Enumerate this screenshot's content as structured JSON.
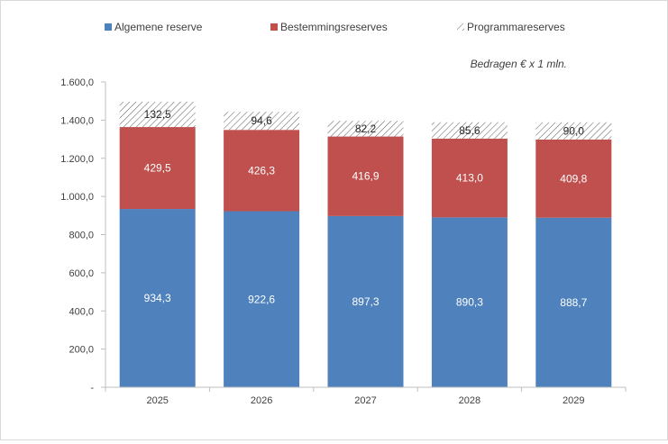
{
  "chart_data": {
    "type": "bar",
    "stacked": true,
    "categories": [
      "2025",
      "2026",
      "2027",
      "2028",
      "2029"
    ],
    "series": [
      {
        "name": "Algemene reserve",
        "values": [
          934.3,
          922.6,
          897.3,
          890.3,
          888.7
        ],
        "color": "#4f81bd",
        "labels": [
          "934,3",
          "922,6",
          "897,3",
          "890,3",
          "888,7"
        ]
      },
      {
        "name": "Bestemmingsreserves",
        "values": [
          429.5,
          426.3,
          416.9,
          413.0,
          409.8
        ],
        "color": "#c0504d",
        "labels": [
          "429,5",
          "426,3",
          "416,9",
          "413,0",
          "409,8"
        ]
      },
      {
        "name": "Programmareserves",
        "values": [
          132.5,
          94.6,
          82.2,
          85.6,
          90.0
        ],
        "color": "#ffffff",
        "pattern": "diagonal-hatch",
        "labels": [
          "132,5",
          "94,6",
          "82,2",
          "85,6",
          "90,0"
        ]
      }
    ],
    "ylim": [
      0,
      1600
    ],
    "yticks": [
      0,
      200,
      400,
      600,
      800,
      1000,
      1200,
      1400,
      1600
    ],
    "ytick_labels": [
      "-",
      "200,0",
      "400,0",
      "600,0",
      "800,0",
      "1.000,0",
      "1.200,0",
      "1.400,0",
      "1.600,0"
    ],
    "note": "Bedragen € x 1 mln.",
    "legend_position": "top",
    "grid": false
  }
}
